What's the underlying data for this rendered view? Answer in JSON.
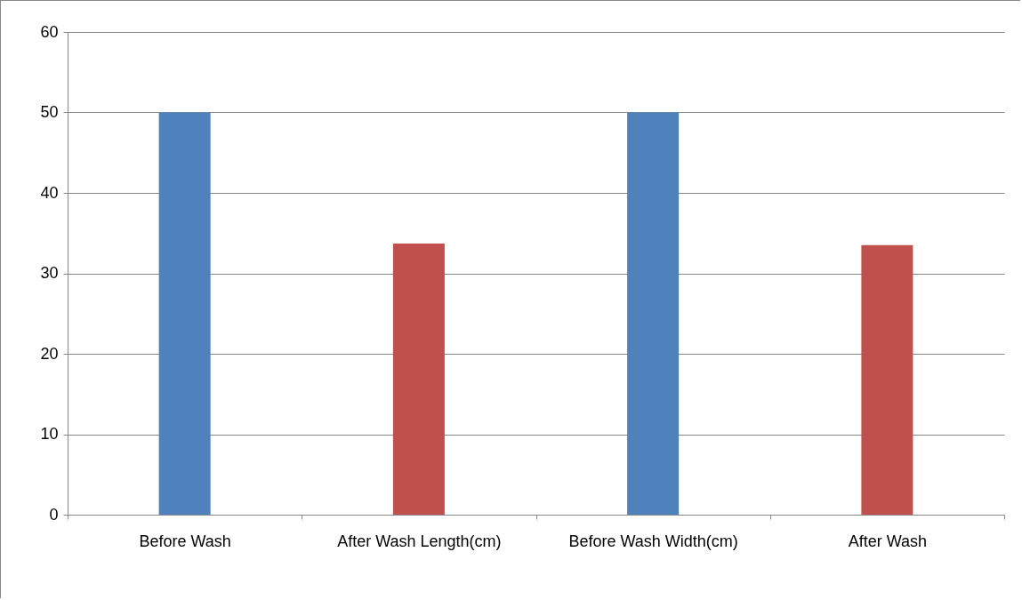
{
  "chart_data": {
    "type": "bar",
    "categories": [
      "Before Wash",
      "After Wash Length(cm)",
      "Before Wash Width(cm)",
      "After Wash"
    ],
    "values": [
      50,
      33.7,
      50,
      33.5
    ],
    "colors": [
      "#4f81bd",
      "#c0504d",
      "#4f81bd",
      "#c0504d"
    ],
    "ylim": [
      0,
      60
    ],
    "yticks": [
      0,
      10,
      20,
      30,
      40,
      50,
      60
    ],
    "grid": "y"
  }
}
